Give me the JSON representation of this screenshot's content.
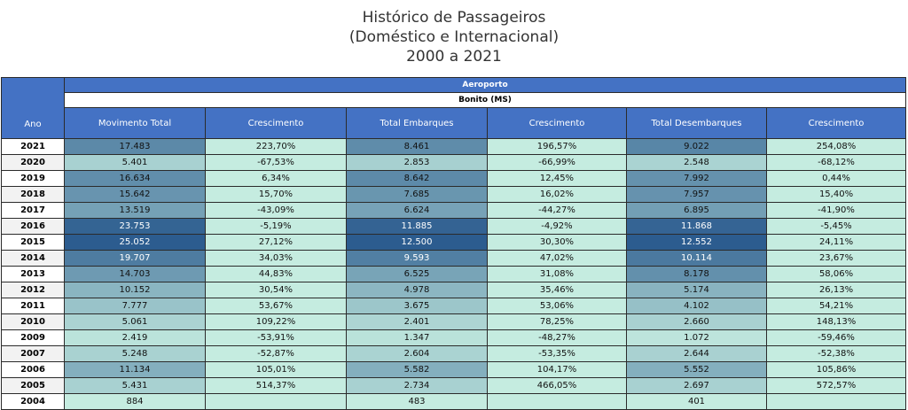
{
  "title": {
    "line1": "Histórico de Passageiros",
    "line2": "(Doméstico e Internacional)",
    "line3": "2000 a 2021"
  },
  "table": {
    "group_header": "Aeroporto",
    "sub_header": "Bonito (MS)",
    "columns": [
      "Ano",
      "Movimento Total",
      "Crescimento",
      "Total Embarques",
      "Crescimento",
      "Total Desembarques",
      "Crescimento"
    ],
    "rows": [
      {
        "ano": "2021",
        "total": "17.483",
        "cresc_total": "223,70%",
        "emb": "8.461",
        "cresc_emb": "196,57%",
        "desemb": "9.022",
        "cresc_desemb": "254,08%"
      },
      {
        "ano": "2020",
        "total": "5.401",
        "cresc_total": "-67,53%",
        "emb": "2.853",
        "cresc_emb": "-66,99%",
        "desemb": "2.548",
        "cresc_desemb": "-68,12%"
      },
      {
        "ano": "2019",
        "total": "16.634",
        "cresc_total": "6,34%",
        "emb": "8.642",
        "cresc_emb": "12,45%",
        "desemb": "7.992",
        "cresc_desemb": "0,44%"
      },
      {
        "ano": "2018",
        "total": "15.642",
        "cresc_total": "15,70%",
        "emb": "7.685",
        "cresc_emb": "16,02%",
        "desemb": "7.957",
        "cresc_desemb": "15,40%"
      },
      {
        "ano": "2017",
        "total": "13.519",
        "cresc_total": "-43,09%",
        "emb": "6.624",
        "cresc_emb": "-44,27%",
        "desemb": "6.895",
        "cresc_desemb": "-41,90%"
      },
      {
        "ano": "2016",
        "total": "23.753",
        "cresc_total": "-5,19%",
        "emb": "11.885",
        "cresc_emb": "-4,92%",
        "desemb": "11.868",
        "cresc_desemb": "-5,45%"
      },
      {
        "ano": "2015",
        "total": "25.052",
        "cresc_total": "27,12%",
        "emb": "12.500",
        "cresc_emb": "30,30%",
        "desemb": "12.552",
        "cresc_desemb": "24,11%"
      },
      {
        "ano": "2014",
        "total": "19.707",
        "cresc_total": "34,03%",
        "emb": "9.593",
        "cresc_emb": "47,02%",
        "desemb": "10.114",
        "cresc_desemb": "23,67%"
      },
      {
        "ano": "2013",
        "total": "14.703",
        "cresc_total": "44,83%",
        "emb": "6.525",
        "cresc_emb": "31,08%",
        "desemb": "8.178",
        "cresc_desemb": "58,06%"
      },
      {
        "ano": "2012",
        "total": "10.152",
        "cresc_total": "30,54%",
        "emb": "4.978",
        "cresc_emb": "35,46%",
        "desemb": "5.174",
        "cresc_desemb": "26,13%"
      },
      {
        "ano": "2011",
        "total": "7.777",
        "cresc_total": "53,67%",
        "emb": "3.675",
        "cresc_emb": "53,06%",
        "desemb": "4.102",
        "cresc_desemb": "54,21%"
      },
      {
        "ano": "2010",
        "total": "5.061",
        "cresc_total": "109,22%",
        "emb": "2.401",
        "cresc_emb": "78,25%",
        "desemb": "2.660",
        "cresc_desemb": "148,13%"
      },
      {
        "ano": "2009",
        "total": "2.419",
        "cresc_total": "-53,91%",
        "emb": "1.347",
        "cresc_emb": "-48,27%",
        "desemb": "1.072",
        "cresc_desemb": "-59,46%"
      },
      {
        "ano": "2007",
        "total": "5.248",
        "cresc_total": "-52,87%",
        "emb": "2.604",
        "cresc_emb": "-53,35%",
        "desemb": "2.644",
        "cresc_desemb": "-52,38%"
      },
      {
        "ano": "2006",
        "total": "11.134",
        "cresc_total": "105,01%",
        "emb": "5.582",
        "cresc_emb": "104,17%",
        "desemb": "5.552",
        "cresc_desemb": "105,86%"
      },
      {
        "ano": "2005",
        "total": "5.431",
        "cresc_total": "514,37%",
        "emb": "2.734",
        "cresc_emb": "466,05%",
        "desemb": "2.697",
        "cresc_desemb": "572,57%"
      },
      {
        "ano": "2004",
        "total": "884",
        "cresc_total": "",
        "emb": "483",
        "cresc_emb": "",
        "desemb": "401",
        "cresc_desemb": ""
      }
    ]
  },
  "colors": {
    "header_blue": "#4472c4",
    "growth_cell": "#c5ece0",
    "scale_low": "#c5ece0",
    "scale_high": "#2c5c8f"
  }
}
